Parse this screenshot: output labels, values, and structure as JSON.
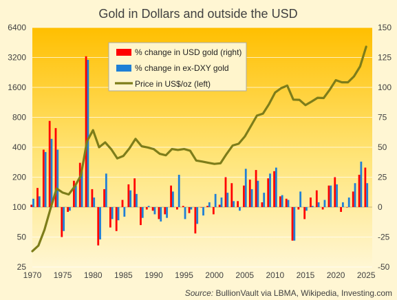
{
  "chart_data": {
    "type": "bar",
    "title": "Gold in Dollars and outside the USD",
    "source_label": "Source:",
    "source_text": "BullionVault via  LBMA, Wikipedia, Investing.com",
    "left_axis": {
      "scale": "log2",
      "ylim": [
        25,
        6400
      ],
      "tick_labels": [
        "25",
        "50",
        "100",
        "200",
        "400",
        "800",
        "1600",
        "3200",
        "6400"
      ],
      "tick_values": [
        25,
        50,
        100,
        200,
        400,
        800,
        1600,
        3200,
        6400
      ]
    },
    "right_axis": {
      "scale": "linear",
      "ylim": [
        -50,
        150
      ],
      "tick_labels": [
        "-50",
        "-25",
        "0",
        "25",
        "50",
        "75",
        "100",
        "125",
        "150"
      ],
      "tick_values": [
        -50,
        -25,
        0,
        25,
        50,
        75,
        100,
        125,
        150
      ]
    },
    "x_axis": {
      "xlim": [
        1970,
        2026
      ],
      "tick_labels": [
        "1970",
        "1975",
        "1980",
        "1985",
        "1990",
        "1995",
        "2000",
        "2005",
        "2010",
        "2015",
        "2020",
        "2025"
      ],
      "tick_values": [
        1970,
        1975,
        1980,
        1985,
        1990,
        1995,
        2000,
        2005,
        2010,
        2015,
        2020,
        2025
      ]
    },
    "legend": {
      "placement": "top-center",
      "entries": [
        {
          "label": "% change in USD gold (right)",
          "color": "#ff0000",
          "kind": "bar"
        },
        {
          "label": "% change in ex-DXY gold",
          "color": "#1f7fd6",
          "kind": "bar"
        },
        {
          "label": "Price in US$/oz (left)",
          "color": "#7d7d1a",
          "kind": "line"
        }
      ]
    },
    "grid": true,
    "colors": {
      "usd_bar": "#ff0000",
      "exdxy_bar": "#1f7fd6",
      "price_line": "#7d7d1a",
      "background_top": "#ffbf00",
      "background_bottom": "#fff6d3",
      "text": "#404040"
    },
    "years": [
      1970,
      1971,
      1972,
      1973,
      1974,
      1975,
      1976,
      1977,
      1978,
      1979,
      1980,
      1981,
      1982,
      1983,
      1984,
      1985,
      1986,
      1987,
      1988,
      1989,
      1990,
      1991,
      1992,
      1993,
      1994,
      1995,
      1996,
      1997,
      1998,
      1999,
      2000,
      2001,
      2002,
      2003,
      2004,
      2005,
      2006,
      2007,
      2008,
      2009,
      2010,
      2011,
      2012,
      2013,
      2014,
      2015,
      2016,
      2017,
      2018,
      2019,
      2020,
      2021,
      2022,
      2023,
      2024,
      2025
    ],
    "series": [
      {
        "name": "% change in USD gold (right)",
        "axis": "right",
        "values": [
          2,
          16,
          48,
          72,
          66,
          -25,
          -4,
          22,
          37,
          126,
          15,
          -32,
          15,
          -17,
          -20,
          6,
          19,
          24,
          -15,
          -2,
          -3,
          -10,
          -6,
          18,
          -2,
          1,
          -5,
          -22,
          0,
          1,
          -6,
          2,
          25,
          20,
          5,
          18,
          23,
          31,
          4,
          24,
          30,
          9,
          7,
          -28,
          -2,
          -10,
          8,
          14,
          -2,
          18,
          25,
          -4,
          0,
          13,
          27,
          33
        ],
        "type": "bar"
      },
      {
        "name": "% change in ex-DXY gold",
        "axis": "right",
        "values": [
          7,
          9,
          46,
          57,
          48,
          -20,
          -3,
          18,
          30,
          123,
          8,
          -27,
          28,
          -10,
          -11,
          -8,
          14,
          11,
          -9,
          1,
          -6,
          -12,
          -9,
          13,
          27,
          -10,
          -2,
          -14,
          -7,
          4,
          11,
          8,
          12,
          5,
          -3,
          32,
          15,
          22,
          12,
          28,
          33,
          10,
          6,
          -28,
          13,
          -3,
          1,
          4,
          6,
          18,
          19,
          4,
          8,
          20,
          38,
          20
        ],
        "type": "bar"
      },
      {
        "name": "Price in US$/oz (left)",
        "axis": "left",
        "values": [
          36,
          41,
          59,
          97,
          154,
          140,
          134,
          162,
          208,
          459,
          594,
          400,
          448,
          382,
          309,
          327,
          390,
          486,
          410,
          398,
          383,
          343,
          332,
          384,
          376,
          384,
          369,
          294,
          287,
          279,
          272,
          276,
          342,
          416,
          434,
          513,
          652,
          833,
          872,
          1087,
          1421,
          1571,
          1668,
          1204,
          1199,
          1060,
          1152,
          1257,
          1250,
          1518,
          1892,
          1800,
          1800,
          2063,
          2600,
          4100
        ],
        "type": "line"
      }
    ]
  }
}
